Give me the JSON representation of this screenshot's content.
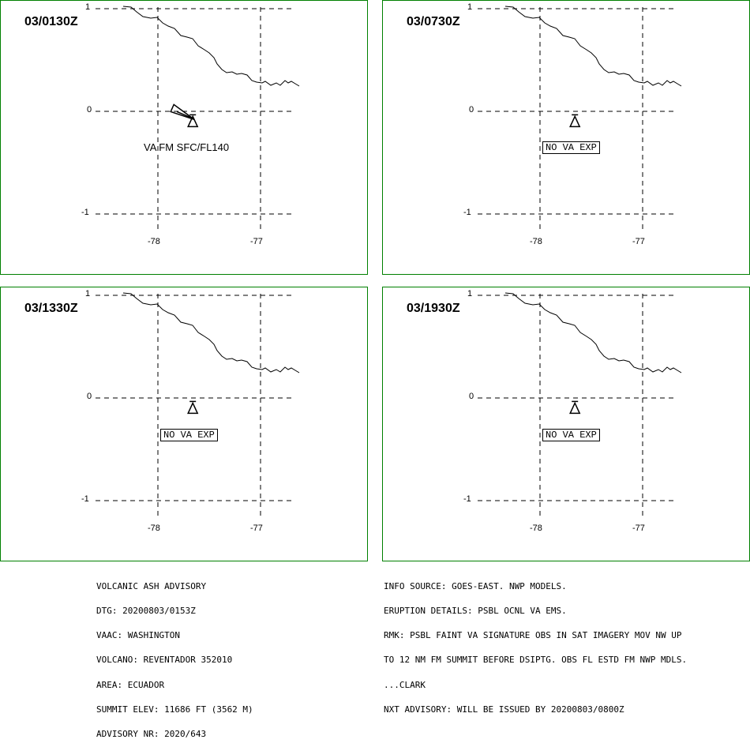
{
  "map": {
    "lat_ticks": [
      "1",
      "0",
      "-1"
    ],
    "lon_ticks": [
      "-78",
      "-77"
    ],
    "volcano": {
      "lat": -0.08,
      "lon": -77.66
    }
  },
  "panels": [
    {
      "time": "03/0130Z",
      "va_text": "VA FM SFC/FL140",
      "va_boxed": false,
      "ash_plume": true
    },
    {
      "time": "03/0730Z",
      "va_text": "NO VA EXP",
      "va_boxed": true,
      "ash_plume": false
    },
    {
      "time": "03/1330Z",
      "va_text": "NO VA EXP",
      "va_boxed": true,
      "ash_plume": false
    },
    {
      "time": "03/1930Z",
      "va_text": "NO VA EXP",
      "va_boxed": true,
      "ash_plume": false
    }
  ],
  "advisory_left": [
    "VOLCANIC ASH ADVISORY",
    "DTG: 20200803/0153Z",
    "VAAC: WASHINGTON",
    "VOLCANO: REVENTADOR 352010",
    "AREA: ECUADOR",
    "SUMMIT ELEV: 11686 FT (3562 M)",
    "ADVISORY NR: 2020/643"
  ],
  "advisory_right": [
    "INFO SOURCE: GOES-EAST. NWP MODELS.",
    "ERUPTION DETAILS: PSBL OCNL VA EMS.",
    "RMK: PSBL FAINT VA SIGNATURE OBS IN SAT IMAGERY MOV NW UP",
    "TO 12 NM FM SUMMIT BEFORE DSIPTG. OBS FL ESTD FM NWP MDLS.",
    "...CLARK",
    "NXT ADVISORY: WILL BE ISSUED BY 20200803/0800Z"
  ],
  "colors": {
    "panel_border": "#008000",
    "lines": "#000000"
  }
}
